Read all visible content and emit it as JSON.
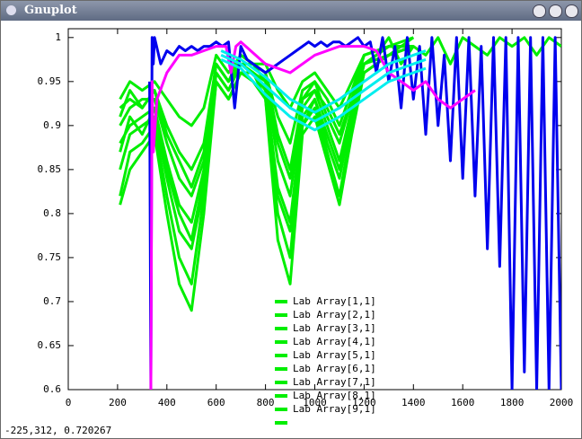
{
  "window_title": "Gnuplot",
  "status": "-225,312,  0.720267",
  "chart_data": {
    "type": "line",
    "xlim": [
      0,
      2000
    ],
    "xticks": [
      0,
      200,
      400,
      600,
      800,
      1000,
      1200,
      1400,
      1600,
      1800,
      2000
    ],
    "ylim": [
      0.6,
      1.01
    ],
    "yticks": [
      0.6,
      0.65,
      0.7,
      0.75,
      0.8,
      0.85,
      0.9,
      0.95,
      1
    ],
    "series": [
      {
        "name": "Lab Array[1,1]",
        "color": "#00ee00",
        "x": [
          210,
          250,
          300,
          350,
          400,
          450,
          500,
          550,
          600,
          650,
          700,
          750,
          800,
          850,
          900,
          950,
          1000,
          1050,
          1100,
          1150,
          1200,
          1300,
          1400
        ],
        "values": [
          0.93,
          0.95,
          0.94,
          0.95,
          0.93,
          0.91,
          0.9,
          0.92,
          0.98,
          0.96,
          0.98,
          0.97,
          0.97,
          0.94,
          0.92,
          0.95,
          0.96,
          0.94,
          0.92,
          0.95,
          0.98,
          0.99,
          0.99
        ]
      },
      {
        "name": "Lab Array[2,1]",
        "color": "#00ee00",
        "x": [
          210,
          250,
          300,
          350,
          400,
          450,
          500,
          550,
          600,
          650,
          700,
          750,
          800,
          850,
          900,
          950,
          1000,
          1050,
          1100,
          1150,
          1200,
          1300,
          1400
        ],
        "values": [
          0.92,
          0.93,
          0.92,
          0.94,
          0.9,
          0.87,
          0.85,
          0.88,
          0.97,
          0.95,
          0.98,
          0.97,
          0.96,
          0.91,
          0.88,
          0.94,
          0.95,
          0.93,
          0.9,
          0.94,
          0.98,
          0.99,
          0.99
        ]
      },
      {
        "name": "Lab Array[3,1]",
        "color": "#00ee00",
        "x": [
          210,
          250,
          300,
          350,
          400,
          450,
          500,
          550,
          600,
          650,
          700,
          750,
          800,
          850,
          900,
          950,
          1000,
          1050,
          1100,
          1150,
          1200,
          1300,
          1400
        ],
        "values": [
          0.9,
          0.92,
          0.93,
          0.93,
          0.88,
          0.84,
          0.82,
          0.86,
          0.97,
          0.95,
          0.97,
          0.97,
          0.96,
          0.89,
          0.85,
          0.93,
          0.95,
          0.91,
          0.88,
          0.93,
          0.97,
          0.99,
          0.99
        ]
      },
      {
        "name": "Lab Array[4,1]",
        "color": "#00ee00",
        "x": [
          210,
          250,
          300,
          350,
          400,
          450,
          500,
          550,
          600,
          650,
          700,
          750,
          800,
          850,
          900,
          950,
          1000,
          1050,
          1100,
          1150,
          1200,
          1300,
          1400
        ],
        "values": [
          0.88,
          0.9,
          0.91,
          0.92,
          0.86,
          0.81,
          0.79,
          0.85,
          0.96,
          0.94,
          0.97,
          0.96,
          0.95,
          0.86,
          0.82,
          0.92,
          0.94,
          0.9,
          0.86,
          0.92,
          0.97,
          0.99,
          1
        ]
      },
      {
        "name": "Lab Array[5,1]",
        "color": "#00ee00",
        "x": [
          210,
          250,
          300,
          350,
          400,
          450,
          500,
          550,
          600,
          650,
          700,
          750,
          800,
          850,
          900,
          950,
          1000,
          1050,
          1100,
          1150,
          1200,
          1300,
          1400
        ],
        "values": [
          0.85,
          0.89,
          0.9,
          0.91,
          0.84,
          0.78,
          0.76,
          0.83,
          0.96,
          0.94,
          0.97,
          0.96,
          0.94,
          0.83,
          0.79,
          0.91,
          0.93,
          0.88,
          0.84,
          0.91,
          0.97,
          0.98,
          1
        ]
      },
      {
        "name": "Lab Array[6,1]",
        "color": "#00ee00",
        "x": [
          210,
          250,
          300,
          350,
          400,
          450,
          500,
          550,
          600,
          650,
          700,
          750,
          800,
          850,
          900,
          950,
          1000,
          1050,
          1100,
          1150,
          1200,
          1300,
          1400
        ],
        "values": [
          0.82,
          0.87,
          0.88,
          0.9,
          0.82,
          0.75,
          0.72,
          0.82,
          0.95,
          0.93,
          0.96,
          0.96,
          0.93,
          0.8,
          0.75,
          0.9,
          0.92,
          0.87,
          0.82,
          0.9,
          0.96,
          0.98,
          0.99
        ]
      },
      {
        "name": "Lab Array[7,1]",
        "color": "#00ee00",
        "x": [
          210,
          250,
          300,
          350,
          400,
          450,
          500,
          550,
          600,
          650,
          700,
          750,
          800,
          850,
          900,
          950,
          1000,
          1050,
          1100,
          1150,
          1200,
          1300,
          1400
        ],
        "values": [
          0.81,
          0.85,
          0.87,
          0.89,
          0.8,
          0.72,
          0.69,
          0.8,
          0.95,
          0.93,
          0.96,
          0.95,
          0.93,
          0.77,
          0.72,
          0.89,
          0.91,
          0.86,
          0.81,
          0.89,
          0.96,
          0.98,
          0.99
        ]
      },
      {
        "name": "Lab Array[8,1]",
        "color": "#00ee00",
        "x": [
          210,
          250,
          300,
          350,
          400,
          450,
          500,
          550,
          600,
          650,
          700,
          750,
          800,
          850,
          900,
          950,
          1000,
          1050,
          1100,
          1150,
          1200,
          1300,
          1400
        ],
        "values": [
          0.87,
          0.91,
          0.89,
          0.92,
          0.85,
          0.8,
          0.77,
          0.84,
          0.96,
          0.94,
          0.97,
          0.96,
          0.94,
          0.82,
          0.78,
          0.9,
          0.93,
          0.89,
          0.85,
          0.91,
          0.97,
          0.98,
          0.99
        ]
      },
      {
        "name": "Lab Array[9,1]",
        "color": "#00ee00",
        "x": [
          210,
          250,
          300,
          350,
          400,
          450,
          500,
          550,
          600,
          650,
          700,
          750,
          800,
          850,
          900,
          950,
          1000,
          1050,
          1100,
          1150,
          1200,
          1300,
          1400
        ],
        "values": [
          0.91,
          0.94,
          0.92,
          0.94,
          0.89,
          0.86,
          0.83,
          0.87,
          0.97,
          0.95,
          0.98,
          0.97,
          0.95,
          0.88,
          0.84,
          0.93,
          0.94,
          0.92,
          0.89,
          0.93,
          0.98,
          0.99,
          0.99
        ]
      },
      {
        "color": "#00ee00",
        "x": [
          1250,
          1300,
          1350,
          1400,
          1450,
          1500,
          1550,
          1600,
          1650,
          1700,
          1750,
          1800,
          1850,
          1900,
          1950,
          2000
        ],
        "values": [
          0.98,
          1,
          0.97,
          0.99,
          0.98,
          1,
          0.97,
          1,
          0.99,
          0.98,
          1,
          0.99,
          1,
          0.98,
          1,
          0.99
        ]
      },
      {
        "color": "#0000ee",
        "x": [
          330,
          335,
          340,
          345,
          350,
          375,
          400,
          425,
          450,
          475,
          500,
          525,
          550,
          575,
          600,
          625,
          650,
          675,
          700,
          725,
          750,
          775,
          800,
          825,
          850,
          875,
          900,
          925,
          950,
          975,
          1000,
          1025,
          1050,
          1075,
          1100,
          1125,
          1150,
          1175,
          1200,
          1225,
          1250,
          1275,
          1300,
          1325,
          1350,
          1375,
          1400,
          1425,
          1450,
          1475,
          1500,
          1525,
          1550,
          1575,
          1600,
          1625,
          1650,
          1675,
          1700,
          1725,
          1750,
          1775,
          1800,
          1825,
          1850,
          1875,
          1900,
          1925,
          1950,
          1975,
          2000
        ],
        "values": [
          0.95,
          0.6,
          1,
          0.97,
          1,
          0.97,
          0.985,
          0.98,
          0.99,
          0.985,
          0.99,
          0.985,
          0.99,
          0.99,
          0.995,
          0.99,
          0.995,
          0.92,
          0.99,
          0.975,
          0.97,
          0.965,
          0.96,
          0.965,
          0.97,
          0.975,
          0.98,
          0.985,
          0.99,
          0.995,
          0.99,
          0.995,
          0.99,
          0.995,
          0.995,
          0.99,
          0.995,
          1,
          0.99,
          0.995,
          0.96,
          1,
          0.95,
          0.99,
          0.92,
          1,
          0.93,
          0.99,
          0.89,
          1,
          0.9,
          0.98,
          0.86,
          1,
          0.84,
          1,
          0.82,
          0.99,
          0.76,
          1,
          0.74,
          1,
          0.6,
          1,
          0.62,
          1,
          0.6,
          1,
          0.6,
          1,
          0.6
        ]
      },
      {
        "color": "#ff00ff",
        "x": [
          335,
          340,
          345,
          360,
          400,
          450,
          500,
          550,
          600,
          640,
          660,
          680,
          700,
          800,
          900,
          1000,
          1100,
          1200,
          1250,
          1300,
          1350,
          1400,
          1450,
          1500,
          1550,
          1600,
          1650
        ],
        "values": [
          0.6,
          0.95,
          0.87,
          0.93,
          0.96,
          0.98,
          0.98,
          0.985,
          0.99,
          0.99,
          0.96,
          0.99,
          0.995,
          0.97,
          0.96,
          0.98,
          0.99,
          0.99,
          0.985,
          0.96,
          0.95,
          0.94,
          0.95,
          0.93,
          0.92,
          0.93,
          0.94
        ]
      },
      {
        "color": "#00eeee",
        "x": [
          620,
          700,
          800,
          900,
          1000,
          1100,
          1200,
          1300,
          1400,
          1450
        ],
        "values": [
          0.985,
          0.975,
          0.955,
          0.93,
          0.915,
          0.93,
          0.95,
          0.97,
          0.98,
          0.985
        ]
      },
      {
        "color": "#00eeee",
        "x": [
          620,
          700,
          800,
          900,
          1000,
          1100,
          1200,
          1300,
          1400,
          1450
        ],
        "values": [
          0.98,
          0.97,
          0.945,
          0.92,
          0.905,
          0.92,
          0.94,
          0.96,
          0.97,
          0.975
        ]
      },
      {
        "color": "#00eeee",
        "x": [
          620,
          700,
          800,
          900,
          1000,
          1100,
          1200,
          1300,
          1400,
          1450
        ],
        "values": [
          0.975,
          0.965,
          0.935,
          0.91,
          0.895,
          0.91,
          0.93,
          0.95,
          0.96,
          0.965
        ]
      }
    ]
  }
}
